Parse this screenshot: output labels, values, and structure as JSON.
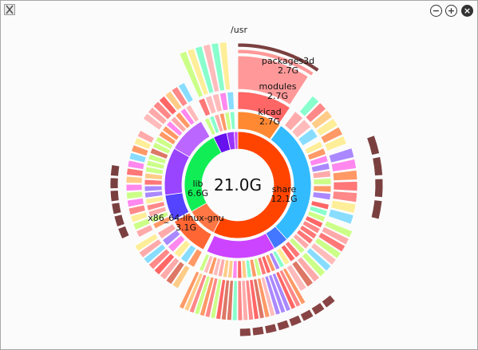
{
  "window": {
    "path": "/usr",
    "icon": "x-app-icon",
    "controls": {
      "minimize_glyph": "−",
      "maximize_glyph": "+",
      "close_glyph": "×"
    }
  },
  "center": {
    "total": "21.0G"
  },
  "segments": [
    {
      "name": "share",
      "size": "12.1G",
      "color": "#ff4400"
    },
    {
      "name": "lib",
      "size": "6.6G",
      "color": "#11ee55"
    },
    {
      "name": "x86_64-linux-gnu",
      "size": "3.1G",
      "color": "#ff7744"
    },
    {
      "name": "kicad",
      "size": "2.7G",
      "color": "#ff8833"
    },
    {
      "name": "modules",
      "size": "2.7G",
      "color": "#ff6666"
    },
    {
      "name": "packages3d",
      "size": "2.7G",
      "color": "#ff9999"
    }
  ]
}
